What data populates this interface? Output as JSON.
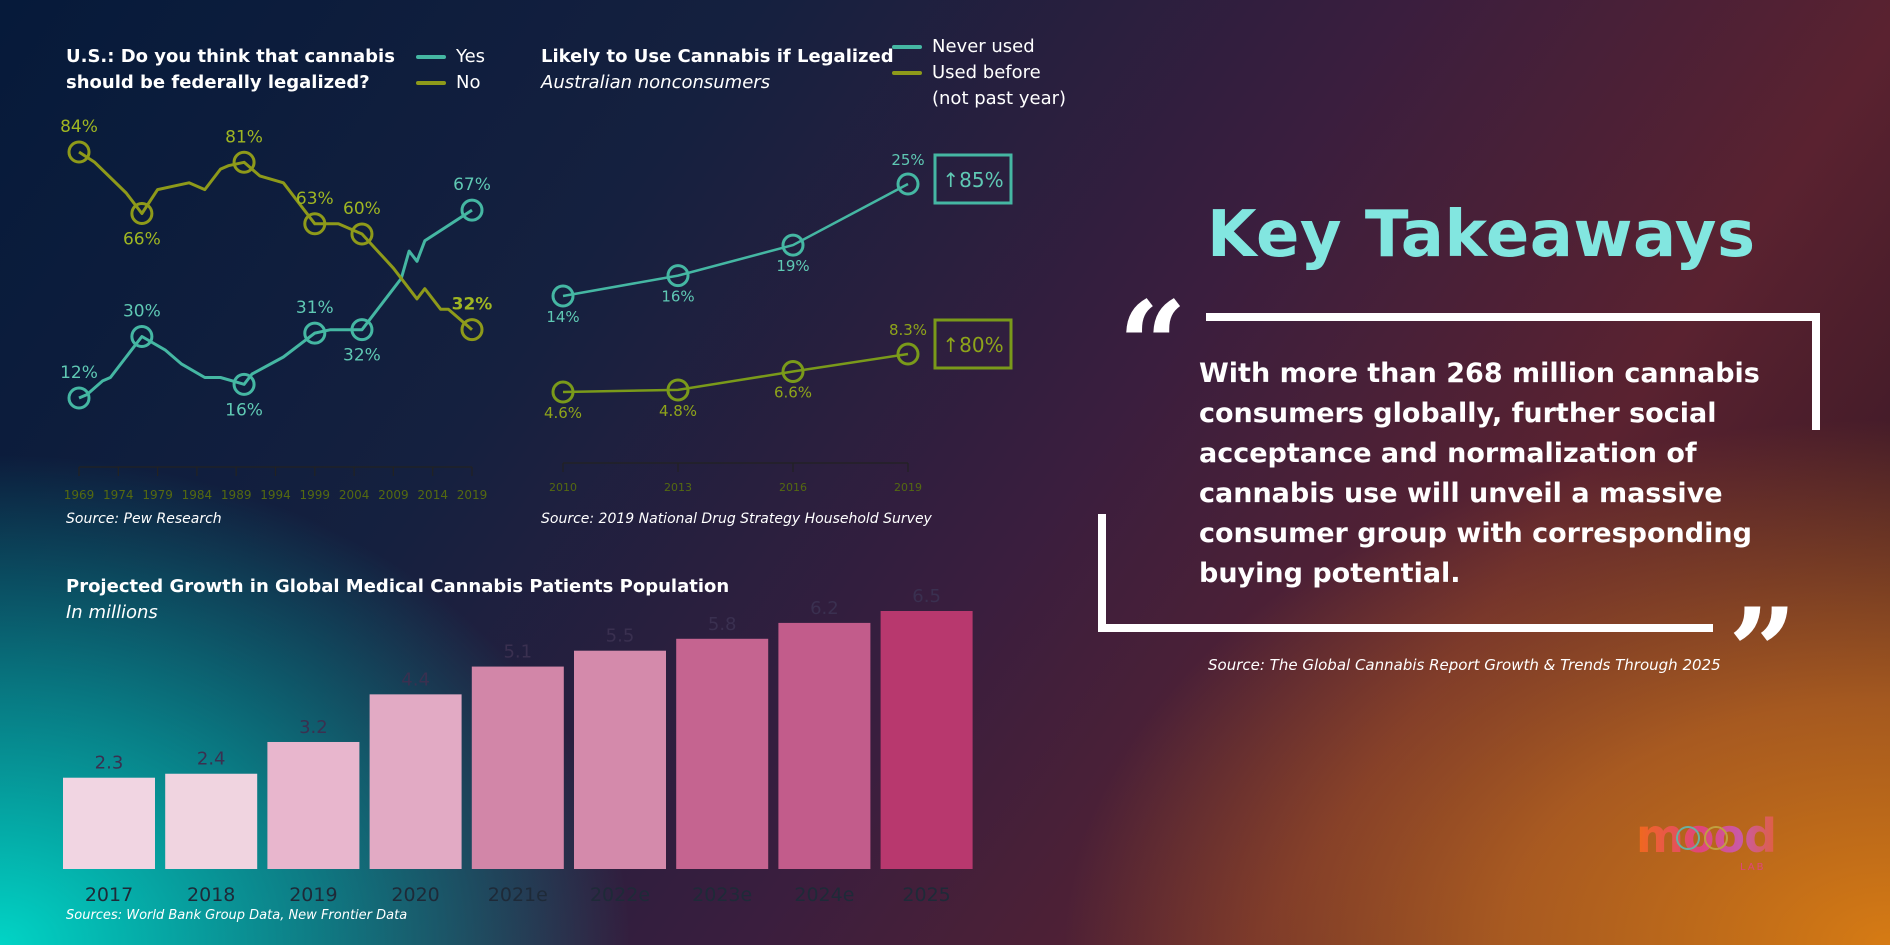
{
  "colors": {
    "teal": "#45b7a3",
    "olive": "#8e9a1a",
    "olive_light": "#9fb622",
    "key_title": "#82e6e0",
    "bar_dark_text": "#3a3050"
  },
  "left_chart": {
    "title_line1": "U.S.: Do you think that cannabis",
    "title_line2": "should be federally legalized?",
    "legend": {
      "yes": "Yes",
      "no": "No"
    },
    "source": "Source: Pew Research"
  },
  "middle_chart": {
    "title": "Likely to Use Cannabis if Legalized",
    "subtitle": "Australian nonconsumers",
    "legend": {
      "never": "Never used",
      "used_line1": "Used before",
      "used_line2": "(not past year)"
    },
    "badge_never": "↑85%",
    "badge_used": "↑80%",
    "source": "Source: 2019 National Drug Strategy Household Survey"
  },
  "bottom_chart": {
    "title": "Projected Growth in Global Medical Cannabis Patients Population",
    "subtitle": "In millions",
    "source": "Sources: World Bank Group Data, New Frontier Data"
  },
  "key_takeaways": {
    "title": "Key Takeaways",
    "open_quote": "“",
    "close_quote": "”",
    "quote_line1": "With more than 268 million cannabis",
    "quote_line2": "consumers globally, further social",
    "quote_line3": "acceptance and normalization of",
    "quote_line4": "cannabis use will unveil a massive",
    "quote_line5": "consumer group with corresponding",
    "quote_line6": "buying potential.",
    "source": "Source: The Global Cannabis Report Growth & Trends Through 2025"
  },
  "logo": {
    "text": "mood",
    "sub": "LAB"
  },
  "chart_data": [
    {
      "type": "line",
      "title": "U.S.: Do you think that cannabis should be federally legalized?",
      "x_ticks": [
        "1969",
        "1974",
        "1979",
        "1984",
        "1989",
        "1994",
        "1999",
        "2004",
        "2009",
        "2014",
        "2019"
      ],
      "xlim": [
        1969,
        2019
      ],
      "ylim": [
        0,
        100
      ],
      "series": [
        {
          "name": "Yes",
          "color": "#45b7a3",
          "x": [
            1969,
            1970,
            1972,
            1973,
            1977,
            1980,
            1982,
            1985,
            1987,
            1990,
            1991,
            1995,
            1999,
            2001,
            2005,
            2010,
            2011,
            2012,
            2013,
            2019
          ],
          "values": [
            12,
            13,
            17,
            18,
            30,
            26,
            22,
            18,
            18,
            16,
            19,
            24,
            31,
            32,
            32,
            47,
            55,
            52,
            58,
            67
          ],
          "labeled": [
            {
              "x": 1969,
              "value": 12,
              "label": "12%"
            },
            {
              "x": 1977,
              "value": 30,
              "label": "30%"
            },
            {
              "x": 1990,
              "value": 16,
              "label": "16%"
            },
            {
              "x": 1999,
              "value": 31,
              "label": "31%"
            },
            {
              "x": 2005,
              "value": 32,
              "label": "32%"
            },
            {
              "x": 2019,
              "value": 67,
              "label": "67%"
            }
          ]
        },
        {
          "name": "No",
          "color": "#8e9a1a",
          "x": [
            1969,
            1971,
            1975,
            1977,
            1979,
            1981,
            1983,
            1985,
            1987,
            1988,
            1990,
            1992,
            1995,
            1999,
            2002,
            2005,
            2009,
            2012,
            2013,
            2015,
            2016,
            2019
          ],
          "values": [
            84,
            81,
            72,
            66,
            73,
            74,
            75,
            73,
            79,
            80,
            81,
            77,
            75,
            63,
            63,
            60,
            50,
            41,
            44,
            38,
            38,
            32
          ],
          "labeled": [
            {
              "x": 1969,
              "value": 84,
              "label": "84%"
            },
            {
              "x": 1977,
              "value": 66,
              "label": "66%"
            },
            {
              "x": 1990,
              "value": 81,
              "label": "81%"
            },
            {
              "x": 1999,
              "value": 63,
              "label": "63%"
            },
            {
              "x": 2005,
              "value": 60,
              "label": "60%"
            },
            {
              "x": 2019,
              "value": 32,
              "label": "32%"
            }
          ]
        }
      ]
    },
    {
      "type": "line",
      "title": "Likely to Use Cannabis if Legalized",
      "subtitle": "Australian nonconsumers",
      "x_ticks": [
        "2010",
        "2013",
        "2016",
        "2019"
      ],
      "xlim": [
        2010,
        2019
      ],
      "ylim": [
        0,
        30
      ],
      "series": [
        {
          "name": "Never used",
          "color": "#45b7a3",
          "x": [
            2010,
            2013,
            2016,
            2019
          ],
          "values": [
            14,
            16,
            19,
            25
          ],
          "labels": [
            "14%",
            "16%",
            "19%",
            "25%"
          ],
          "change_badge": "↑85%"
        },
        {
          "name": "Used before (not past year)",
          "color": "#7a9a1a",
          "x": [
            2010,
            2013,
            2016,
            2019
          ],
          "values": [
            4.6,
            4.8,
            6.6,
            8.3
          ],
          "labels": [
            "4.6%",
            "4.8%",
            "6.6%",
            "8.3%"
          ],
          "change_badge": "↑80%"
        }
      ]
    },
    {
      "type": "bar",
      "title": "Projected Growth in Global Medical Cannabis Patients Population",
      "ylabel": "In millions",
      "categories": [
        "2017",
        "2018",
        "2019",
        "2020",
        "2021e",
        "2022e",
        "2023e",
        "2024e",
        "2025"
      ],
      "values": [
        2.3,
        2.4,
        3.2,
        4.4,
        5.1,
        5.5,
        5.8,
        6.2,
        6.5
      ],
      "value_labels": [
        "2.3",
        "2.4",
        "3.2",
        "4.4",
        "5.1",
        "5.5",
        "5.8",
        "6.2",
        "6.5"
      ],
      "colors": [
        "#f1d5e2",
        "#f0d4e0",
        "#e8b6cd",
        "#e2aac4",
        "#d286a8",
        "#d48aab",
        "#c56490",
        "#c25c8b",
        "#b8386e"
      ],
      "ylim": [
        0,
        6.8
      ]
    }
  ]
}
